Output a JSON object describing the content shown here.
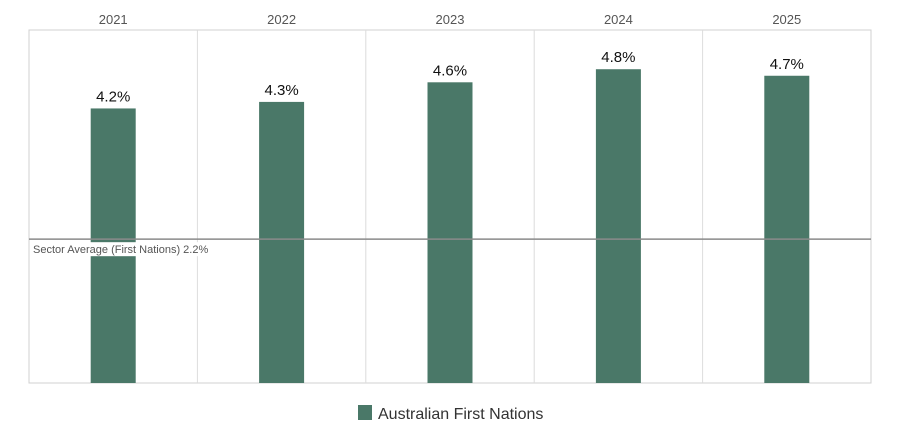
{
  "chart_data": {
    "type": "bar",
    "categories": [
      "2021",
      "2022",
      "2023",
      "2024",
      "2025"
    ],
    "series": [
      {
        "name": "Australian First Nations",
        "values": [
          4.2,
          4.3,
          4.6,
          4.8,
          4.7
        ],
        "labels": [
          "4.2%",
          "4.3%",
          "4.6%",
          "4.8%",
          "4.7%"
        ],
        "color": "#4a7868"
      }
    ],
    "ylim": [
      0,
      5.4
    ],
    "reference_line": {
      "value": 2.2,
      "label": "Sector Average (First Nations) 2.2%"
    },
    "legend": {
      "position": "bottom",
      "label": "Australian First Nations"
    },
    "grid": "vertical column separators"
  }
}
